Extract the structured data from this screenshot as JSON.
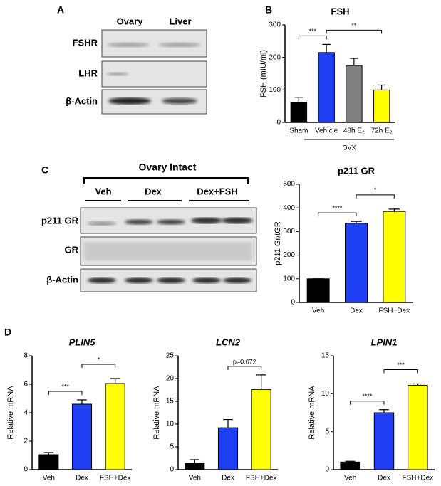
{
  "panels": {
    "a": "A",
    "b": "B",
    "c": "C",
    "d": "D"
  },
  "blot_a": {
    "lanes": [
      "Ovary",
      "Liver"
    ],
    "rows": [
      "FSHR",
      "LHR",
      "β-Actin"
    ]
  },
  "blot_c": {
    "title": "Ovary Intact",
    "groups": [
      "Veh",
      "Dex",
      "Dex+FSH"
    ],
    "rows": [
      "p211 GR",
      "GR",
      "β-Actin"
    ]
  },
  "chart_data": [
    {
      "type": "bar",
      "title": "FSH",
      "y_label": "FSH (mIU/ml)",
      "categories": [
        "Sham",
        "Vehicle",
        "48h E₂",
        "72h E₂"
      ],
      "values": [
        62,
        215,
        175,
        100
      ],
      "errors": [
        15,
        25,
        22,
        15
      ],
      "colors": [
        "#000000",
        "#1f3ff5",
        "#808080",
        "#ffff00"
      ],
      "ylim": [
        0,
        300
      ],
      "yticks": [
        0,
        100,
        200,
        300
      ],
      "group_label": "OVX",
      "annotations": [
        {
          "label": "***",
          "from": 0,
          "to": 1
        },
        {
          "label": "**",
          "from": 1,
          "to": 3
        }
      ]
    },
    {
      "type": "bar",
      "title": "p211 GR",
      "y_label": "p211 Gr/tGR",
      "categories": [
        "Veh",
        "Dex",
        "FSH+Dex"
      ],
      "values": [
        100,
        335,
        385
      ],
      "errors": [
        0,
        8,
        10
      ],
      "colors": [
        "#000000",
        "#1f3ff5",
        "#ffff00"
      ],
      "ylim": [
        0,
        500
      ],
      "yticks": [
        0,
        100,
        200,
        300,
        400,
        500
      ],
      "annotations": [
        {
          "label": "****",
          "from": 0,
          "to": 1
        },
        {
          "label": "*",
          "from": 1,
          "to": 2
        }
      ]
    },
    {
      "type": "bar",
      "title": "PLIN5",
      "y_label": "Relative mRNA",
      "categories": [
        "Veh",
        "Dex",
        "FSH+Dex"
      ],
      "values": [
        1.05,
        4.6,
        6.05
      ],
      "errors": [
        0.15,
        0.3,
        0.35
      ],
      "colors": [
        "#000000",
        "#1f3ff5",
        "#ffff00"
      ],
      "ylim": [
        0,
        8
      ],
      "yticks": [
        0,
        2,
        4,
        6,
        8
      ],
      "annotations": [
        {
          "label": "***",
          "from": 0,
          "to": 1
        },
        {
          "label": "*",
          "from": 1,
          "to": 2
        }
      ]
    },
    {
      "type": "bar",
      "title": "LCN2",
      "y_label": "Relative mRNA",
      "categories": [
        "Veh",
        "Dex",
        "FSH+Dex"
      ],
      "values": [
        1.4,
        9.2,
        17.6
      ],
      "errors": [
        0.8,
        1.8,
        3.2
      ],
      "colors": [
        "#000000",
        "#1f3ff5",
        "#ffff00"
      ],
      "ylim": [
        0,
        25
      ],
      "yticks": [
        0,
        5,
        10,
        15,
        20,
        25
      ],
      "annotations": [
        {
          "label": "p=0.072",
          "from": 1,
          "to": 2
        }
      ]
    },
    {
      "type": "bar",
      "title": "LPIN1",
      "y_label": "Relative mRNA",
      "categories": [
        "Veh",
        "Dex",
        "FSH+Dex"
      ],
      "values": [
        1.0,
        7.5,
        11.1
      ],
      "errors": [
        0.1,
        0.4,
        0.2
      ],
      "colors": [
        "#000000",
        "#1f3ff5",
        "#ffff00"
      ],
      "ylim": [
        0,
        15
      ],
      "yticks": [
        0,
        5,
        10,
        15
      ],
      "annotations": [
        {
          "label": "****",
          "from": 0,
          "to": 1
        },
        {
          "label": "***",
          "from": 1,
          "to": 2
        }
      ]
    }
  ]
}
